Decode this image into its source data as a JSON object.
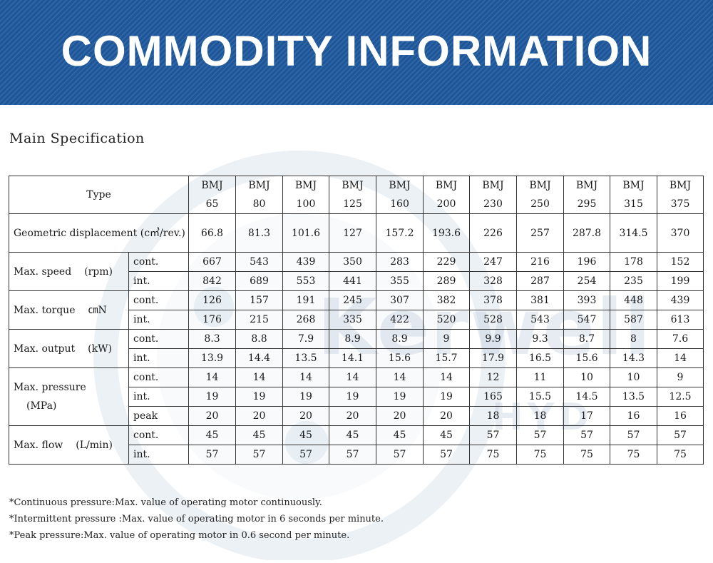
{
  "banner": {
    "title": "COMMODITY INFORMATION"
  },
  "section_title": "Main Specification",
  "watermark": {
    "text": "Kerwell",
    "sub": "HYD"
  },
  "table": {
    "type_label": "Type",
    "models": [
      [
        "BMJ",
        "65"
      ],
      [
        "BMJ",
        "80"
      ],
      [
        "BMJ",
        "100"
      ],
      [
        "BMJ",
        "125"
      ],
      [
        "BMJ",
        "160"
      ],
      [
        "BMJ",
        "200"
      ],
      [
        "BMJ",
        "230"
      ],
      [
        "BMJ",
        "250"
      ],
      [
        "BMJ",
        "295"
      ],
      [
        "BMJ",
        "315"
      ],
      [
        "BMJ",
        "375"
      ]
    ],
    "displacement": {
      "label": "Geometric displacement (c㎥/rev.)",
      "values": [
        "66.8",
        "81.3",
        "101.6",
        "127",
        "157.2",
        "193.6",
        "226",
        "257",
        "287.8",
        "314.5",
        "370"
      ]
    },
    "speed": {
      "label": "Max. speed",
      "unit": "(rpm)",
      "rows": [
        {
          "sub": "cont.",
          "values": [
            "667",
            "543",
            "439",
            "350",
            "283",
            "229",
            "247",
            "216",
            "196",
            "178",
            "152"
          ]
        },
        {
          "sub": "int.",
          "values": [
            "842",
            "689",
            "553",
            "441",
            "355",
            "289",
            "328",
            "287",
            "254",
            "235",
            "199"
          ]
        }
      ]
    },
    "torque": {
      "label": "Max. torque",
      "unit": "㎝N",
      "rows": [
        {
          "sub": "cont.",
          "values": [
            "126",
            "157",
            "191",
            "245",
            "307",
            "382",
            "378",
            "381",
            "393",
            "448",
            "439"
          ]
        },
        {
          "sub": "int.",
          "values": [
            "176",
            "215",
            "268",
            "335",
            "422",
            "520",
            "528",
            "543",
            "547",
            "587",
            "613"
          ]
        }
      ]
    },
    "output": {
      "label": "Max. output",
      "unit": "(kW)",
      "rows": [
        {
          "sub": "cont.",
          "values": [
            "8.3",
            "8.8",
            "7.9",
            "8.9",
            "8.9",
            "9",
            "9.9",
            "9.3",
            "8.7",
            "8",
            "7.6"
          ]
        },
        {
          "sub": "int.",
          "values": [
            "13.9",
            "14.4",
            "13.5",
            "14.1",
            "15.6",
            "15.7",
            "17.9",
            "16.5",
            "15.6",
            "14.3",
            "14"
          ]
        }
      ]
    },
    "pressure": {
      "label": "Max. pressure",
      "unit": "(MPa)",
      "rows": [
        {
          "sub": "cont.",
          "values": [
            "14",
            "14",
            "14",
            "14",
            "14",
            "14",
            "12",
            "11",
            "10",
            "10",
            "9"
          ]
        },
        {
          "sub": "int.",
          "values": [
            "19",
            "19",
            "19",
            "19",
            "19",
            "19",
            "165",
            "15.5",
            "14.5",
            "13.5",
            "12.5"
          ]
        },
        {
          "sub": "peak",
          "values": [
            "20",
            "20",
            "20",
            "20",
            "20",
            "20",
            "18",
            "18",
            "17",
            "16",
            "16"
          ]
        }
      ]
    },
    "flow": {
      "label": "Max. flow",
      "unit": "(L/min)",
      "rows": [
        {
          "sub": "cont.",
          "values": [
            "45",
            "45",
            "45",
            "45",
            "45",
            "45",
            "57",
            "57",
            "57",
            "57",
            "57"
          ]
        },
        {
          "sub": "int.",
          "values": [
            "57",
            "57",
            "57",
            "57",
            "57",
            "57",
            "75",
            "75",
            "75",
            "75",
            "75"
          ]
        }
      ]
    }
  },
  "notes": [
    "*Continuous pressure:Max. value of operating motor continuously.",
    "*Intermittent pressure :Max. value of operating motor in 6 seconds per minute.",
    "*Peak pressure:Max. value of operating motor in 0.6 second per minute."
  ]
}
